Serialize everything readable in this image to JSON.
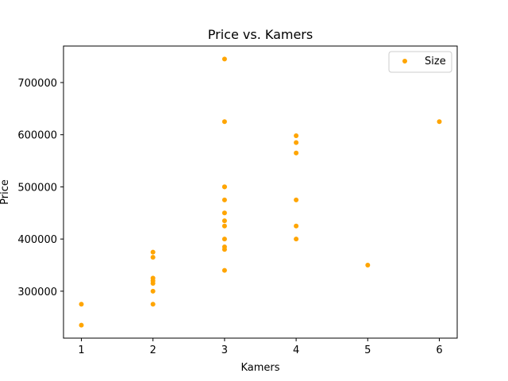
{
  "chart_data": {
    "type": "scatter",
    "title": "Price vs. Kamers",
    "xlabel": "Kamers",
    "ylabel": "Price",
    "xlim": [
      0.75,
      6.25
    ],
    "ylim": [
      210000,
      770000
    ],
    "xticks": [
      1,
      2,
      3,
      4,
      5,
      6
    ],
    "xtick_labels": [
      "1",
      "2",
      "3",
      "4",
      "5",
      "6"
    ],
    "yticks": [
      300000,
      400000,
      500000,
      600000,
      700000
    ],
    "ytick_labels": [
      "300000",
      "400000",
      "500000",
      "600000",
      "700000"
    ],
    "grid": false,
    "legend_position": "upper right",
    "marker_color": "#ffa500",
    "series": [
      {
        "name": "Size",
        "x": [
          1,
          1,
          2,
          2,
          2,
          2,
          2,
          2,
          2,
          3,
          3,
          3,
          3,
          3,
          3,
          3,
          3,
          3,
          3,
          3,
          3,
          4,
          4,
          4,
          4,
          4,
          4,
          5,
          6
        ],
        "y": [
          275000,
          235000,
          375000,
          365000,
          325000,
          315000,
          300000,
          275000,
          320000,
          745000,
          625000,
          500000,
          475000,
          450000,
          435000,
          425000,
          400000,
          385000,
          380000,
          340000,
          500000,
          598000,
          585000,
          565000,
          475000,
          425000,
          400000,
          350000,
          625000
        ]
      }
    ]
  }
}
